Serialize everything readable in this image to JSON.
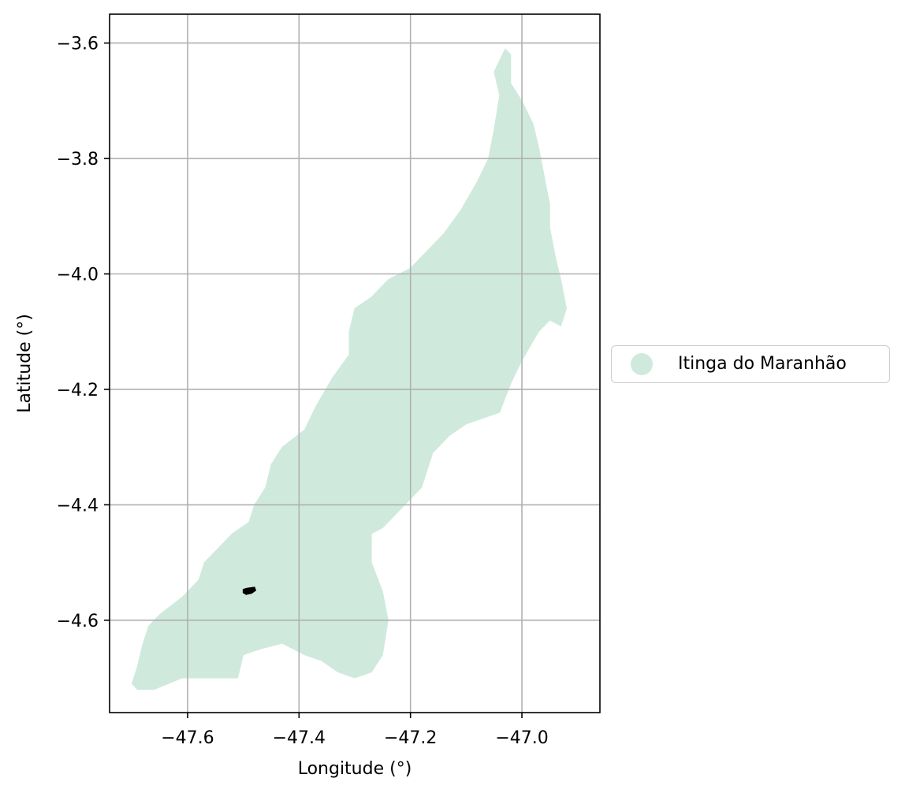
{
  "chart_data": {
    "type": "map",
    "xlabel": "Longitude (°)",
    "ylabel": "Latitude (°)",
    "xlim": [
      -47.74,
      -46.86
    ],
    "ylim": [
      -4.76,
      -3.55
    ],
    "x_ticks": [
      -47.6,
      -47.4,
      -47.2,
      -47.0
    ],
    "x_tick_labels": [
      "−47.6",
      "−47.4",
      "−47.2",
      "−47.0"
    ],
    "y_ticks": [
      -3.6,
      -3.8,
      -4.0,
      -4.2,
      -4.4,
      -4.6
    ],
    "y_tick_labels": [
      "−3.6",
      "−3.8",
      "−4.0",
      "−4.2",
      "−4.4",
      "−4.6"
    ],
    "grid": true,
    "legend_position": "right, outside plot",
    "series": [
      {
        "name": "Itinga do Maranhão",
        "color": "#cfeadd",
        "outline": [
          [
            -47.03,
            -3.61
          ],
          [
            -47.02,
            -3.62
          ],
          [
            -47.02,
            -3.67
          ],
          [
            -47.0,
            -3.7
          ],
          [
            -46.98,
            -3.74
          ],
          [
            -46.97,
            -3.78
          ],
          [
            -46.96,
            -3.83
          ],
          [
            -46.95,
            -3.88
          ],
          [
            -46.95,
            -3.92
          ],
          [
            -46.94,
            -3.97
          ],
          [
            -46.93,
            -4.01
          ],
          [
            -46.92,
            -4.06
          ],
          [
            -46.93,
            -4.09
          ],
          [
            -46.95,
            -4.08
          ],
          [
            -46.97,
            -4.1
          ],
          [
            -47.0,
            -4.15
          ],
          [
            -47.02,
            -4.19
          ],
          [
            -47.04,
            -4.24
          ],
          [
            -47.07,
            -4.25
          ],
          [
            -47.1,
            -4.26
          ],
          [
            -47.13,
            -4.28
          ],
          [
            -47.16,
            -4.31
          ],
          [
            -47.18,
            -4.37
          ],
          [
            -47.21,
            -4.4
          ],
          [
            -47.23,
            -4.42
          ],
          [
            -47.25,
            -4.44
          ],
          [
            -47.27,
            -4.45
          ],
          [
            -47.27,
            -4.5
          ],
          [
            -47.25,
            -4.55
          ],
          [
            -47.24,
            -4.6
          ],
          [
            -47.25,
            -4.66
          ],
          [
            -47.27,
            -4.69
          ],
          [
            -47.3,
            -4.7
          ],
          [
            -47.33,
            -4.69
          ],
          [
            -47.36,
            -4.67
          ],
          [
            -47.39,
            -4.66
          ],
          [
            -47.43,
            -4.64
          ],
          [
            -47.47,
            -4.65
          ],
          [
            -47.5,
            -4.66
          ],
          [
            -47.51,
            -4.7
          ],
          [
            -47.56,
            -4.7
          ],
          [
            -47.61,
            -4.7
          ],
          [
            -47.66,
            -4.72
          ],
          [
            -47.69,
            -4.72
          ],
          [
            -47.7,
            -4.71
          ],
          [
            -47.69,
            -4.68
          ],
          [
            -47.68,
            -4.64
          ],
          [
            -47.67,
            -4.61
          ],
          [
            -47.65,
            -4.59
          ],
          [
            -47.61,
            -4.56
          ],
          [
            -47.58,
            -4.53
          ],
          [
            -47.57,
            -4.5
          ],
          [
            -47.54,
            -4.47
          ],
          [
            -47.52,
            -4.45
          ],
          [
            -47.49,
            -4.43
          ],
          [
            -47.48,
            -4.4
          ],
          [
            -47.46,
            -4.37
          ],
          [
            -47.45,
            -4.33
          ],
          [
            -47.43,
            -4.3
          ],
          [
            -47.39,
            -4.27
          ],
          [
            -47.37,
            -4.23
          ],
          [
            -47.34,
            -4.18
          ],
          [
            -47.31,
            -4.14
          ],
          [
            -47.31,
            -4.1
          ],
          [
            -47.3,
            -4.06
          ],
          [
            -47.27,
            -4.04
          ],
          [
            -47.24,
            -4.01
          ],
          [
            -47.2,
            -3.99
          ],
          [
            -47.17,
            -3.96
          ],
          [
            -47.14,
            -3.93
          ],
          [
            -47.11,
            -3.89
          ],
          [
            -47.08,
            -3.84
          ],
          [
            -47.06,
            -3.8
          ],
          [
            -47.05,
            -3.75
          ],
          [
            -47.04,
            -3.69
          ],
          [
            -47.05,
            -3.65
          ],
          [
            -47.04,
            -3.63
          ],
          [
            -47.03,
            -3.61
          ]
        ]
      },
      {
        "name": "",
        "color": "#000000",
        "outline": [
          [
            -47.5,
            -4.547
          ],
          [
            -47.495,
            -4.545
          ],
          [
            -47.48,
            -4.543
          ],
          [
            -47.478,
            -4.548
          ],
          [
            -47.485,
            -4.553
          ],
          [
            -47.495,
            -4.555
          ],
          [
            -47.5,
            -4.552
          ]
        ]
      }
    ]
  }
}
